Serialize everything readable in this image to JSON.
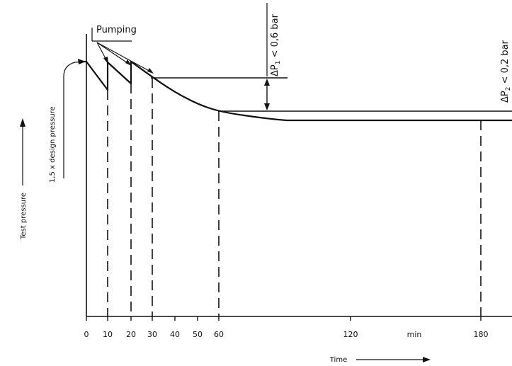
{
  "chart_data": {
    "type": "line",
    "title": "",
    "xlabel": "Time",
    "ylabel": "Test pressure",
    "x_unit": "min",
    "xlim": [
      0,
      195
    ],
    "x_ticks": [
      0,
      10,
      20,
      30,
      40,
      50,
      60,
      120,
      180
    ],
    "x_tick_labels": [
      "0",
      "10",
      "20",
      "30",
      "40",
      "50",
      "60",
      "120",
      "180"
    ],
    "dashed_markers": [
      10,
      20,
      30,
      60,
      180
    ],
    "annotations": {
      "pumping": "Pumping",
      "design_pressure": "1,5 x design pressure",
      "delta_p1": {
        "prefix": "ΔP",
        "sub": "1",
        "suffix": " < 0,6 bar"
      },
      "delta_p2": {
        "prefix": "ΔP",
        "sub": "2",
        "suffix": " < 0,2 bar"
      }
    },
    "grid": false,
    "legend": "none",
    "line_color": "#111111"
  }
}
